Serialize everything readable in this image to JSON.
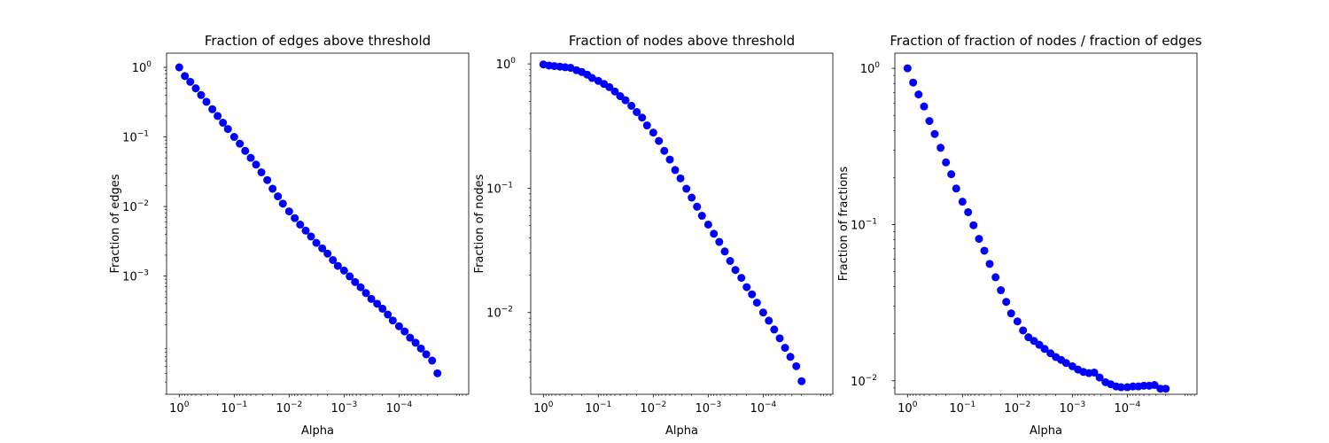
{
  "chart_data": [
    {
      "type": "scatter",
      "title": "Fraction of edges above threshold",
      "xlabel": "Alpha",
      "ylabel": "Fraction of edges",
      "xscale": "log-reversed",
      "yscale": "log",
      "xlim": [
        1.7,
        5.4e-06
      ],
      "ylim": [
        2e-05,
        1.6
      ],
      "xticks": [
        {
          "label": "10^0",
          "base": "10",
          "exp": "0",
          "value": 1
        },
        {
          "label": "10^-1",
          "base": "10",
          "exp": "−1",
          "value": 0.1
        },
        {
          "label": "10^-2",
          "base": "10",
          "exp": "−2",
          "value": 0.01
        },
        {
          "label": "10^-3",
          "base": "10",
          "exp": "−3",
          "value": 0.001
        },
        {
          "label": "10^-4",
          "base": "10",
          "exp": "−4",
          "value": 0.0001
        }
      ],
      "yticks": [
        {
          "label": "10^0",
          "base": "10",
          "exp": "0",
          "value": 1
        },
        {
          "label": "10^-1",
          "base": "10",
          "exp": "−1",
          "value": 0.1
        },
        {
          "label": "10^-2",
          "base": "10",
          "exp": "−2",
          "value": 0.01
        },
        {
          "label": "10^-3",
          "base": "10",
          "exp": "−3",
          "value": 0.001
        }
      ],
      "marker_color": "#0000ff",
      "grid": false,
      "series": [
        {
          "x": [
            1.0,
            0.79,
            0.63,
            0.5,
            0.4,
            0.32,
            0.25,
            0.2,
            0.16,
            0.13,
            0.1,
            0.079,
            0.063,
            0.05,
            0.04,
            0.032,
            0.025,
            0.02,
            0.016,
            0.013,
            0.01,
            0.0079,
            0.0063,
            0.005,
            0.004,
            0.0032,
            0.0025,
            0.002,
            0.0016,
            0.0013,
            0.001,
            0.00079,
            0.00063,
            0.0005,
            0.0004,
            0.00032,
            0.00025,
            0.0002,
            0.00016,
            0.00013,
            0.0001,
            7.9e-05,
            6.3e-05,
            5e-05,
            4e-05,
            3.2e-05,
            2.5e-05,
            2e-05
          ],
          "y": [
            1.0,
            0.75,
            0.62,
            0.5,
            0.4,
            0.32,
            0.25,
            0.2,
            0.16,
            0.13,
            0.1,
            0.08,
            0.063,
            0.05,
            0.04,
            0.031,
            0.024,
            0.018,
            0.014,
            0.011,
            0.0085,
            0.0068,
            0.0055,
            0.0045,
            0.0037,
            0.003,
            0.0025,
            0.0021,
            0.0017,
            0.0014,
            0.0012,
            0.00099,
            0.00082,
            0.00069,
            0.00057,
            0.00047,
            0.0004,
            0.00034,
            0.00028,
            0.00023,
            0.00019,
            0.00016,
            0.00013,
            0.00011,
            9.1e-05,
            7.5e-05,
            6.1e-05,
            4e-05
          ]
        }
      ]
    },
    {
      "type": "scatter",
      "title": "Fraction of nodes above threshold",
      "xlabel": "Alpha",
      "ylabel": "Fraction of nodes",
      "xscale": "log-reversed",
      "yscale": "log",
      "xlim": [
        1.7,
        5.4e-06
      ],
      "ylim": [
        0.0022,
        1.22
      ],
      "xticks": [
        {
          "label": "10^0",
          "base": "10",
          "exp": "0",
          "value": 1
        },
        {
          "label": "10^-1",
          "base": "10",
          "exp": "−1",
          "value": 0.1
        },
        {
          "label": "10^-2",
          "base": "10",
          "exp": "−2",
          "value": 0.01
        },
        {
          "label": "10^-3",
          "base": "10",
          "exp": "−3",
          "value": 0.001
        },
        {
          "label": "10^-4",
          "base": "10",
          "exp": "−4",
          "value": 0.0001
        }
      ],
      "yticks": [
        {
          "label": "10^0",
          "base": "10",
          "exp": "0",
          "value": 1
        },
        {
          "label": "10^-1",
          "base": "10",
          "exp": "−1",
          "value": 0.1
        },
        {
          "label": "10^-2",
          "base": "10",
          "exp": "−2",
          "value": 0.01
        }
      ],
      "marker_color": "#0000ff",
      "grid": false,
      "series": [
        {
          "x": [
            1.0,
            0.79,
            0.63,
            0.5,
            0.4,
            0.32,
            0.25,
            0.2,
            0.16,
            0.13,
            0.1,
            0.079,
            0.063,
            0.05,
            0.04,
            0.032,
            0.025,
            0.02,
            0.016,
            0.013,
            0.01,
            0.0079,
            0.0063,
            0.005,
            0.004,
            0.0032,
            0.0025,
            0.002,
            0.0016,
            0.0013,
            0.001,
            0.00079,
            0.00063,
            0.0005,
            0.0004,
            0.00032,
            0.00025,
            0.0002,
            0.00016,
            0.00013,
            0.0001,
            7.9e-05,
            6.3e-05,
            5e-05,
            4e-05,
            3.2e-05,
            2.5e-05,
            2e-05
          ],
          "y": [
            0.99,
            0.97,
            0.96,
            0.95,
            0.94,
            0.93,
            0.89,
            0.86,
            0.82,
            0.77,
            0.73,
            0.69,
            0.65,
            0.6,
            0.55,
            0.51,
            0.46,
            0.41,
            0.37,
            0.32,
            0.28,
            0.24,
            0.2,
            0.17,
            0.14,
            0.12,
            0.099,
            0.084,
            0.071,
            0.06,
            0.051,
            0.043,
            0.037,
            0.031,
            0.026,
            0.022,
            0.019,
            0.016,
            0.014,
            0.012,
            0.01,
            0.0086,
            0.0073,
            0.0062,
            0.0052,
            0.0044,
            0.0037,
            0.0028
          ]
        }
      ]
    },
    {
      "type": "scatter",
      "title": "Fraction of fraction of nodes / fraction of edges",
      "xlabel": "Alpha",
      "ylabel": "Fraction of fractions",
      "xscale": "log-reversed",
      "yscale": "log",
      "xlim": [
        1.7,
        5.4e-06
      ],
      "ylim": [
        0.0082,
        1.25
      ],
      "xticks": [
        {
          "label": "10^0",
          "base": "10",
          "exp": "0",
          "value": 1
        },
        {
          "label": "10^-1",
          "base": "10",
          "exp": "−1",
          "value": 0.1
        },
        {
          "label": "10^-2",
          "base": "10",
          "exp": "−2",
          "value": 0.01
        },
        {
          "label": "10^-3",
          "base": "10",
          "exp": "−3",
          "value": 0.001
        },
        {
          "label": "10^-4",
          "base": "10",
          "exp": "−4",
          "value": 0.0001
        }
      ],
      "yticks": [
        {
          "label": "10^0",
          "base": "10",
          "exp": "0",
          "value": 1
        },
        {
          "label": "10^-1",
          "base": "10",
          "exp": "−1",
          "value": 0.1
        },
        {
          "label": "10^-2",
          "base": "10",
          "exp": "−2",
          "value": 0.01
        }
      ],
      "marker_color": "#0000ff",
      "grid": false,
      "series": [
        {
          "x": [
            1.0,
            0.79,
            0.63,
            0.5,
            0.4,
            0.32,
            0.25,
            0.2,
            0.16,
            0.13,
            0.1,
            0.079,
            0.063,
            0.05,
            0.04,
            0.032,
            0.025,
            0.02,
            0.016,
            0.013,
            0.01,
            0.0079,
            0.0063,
            0.005,
            0.004,
            0.0032,
            0.0025,
            0.002,
            0.0016,
            0.0013,
            0.001,
            0.00079,
            0.00063,
            0.0005,
            0.0004,
            0.00032,
            0.00025,
            0.0002,
            0.00016,
            0.00013,
            0.0001,
            7.9e-05,
            6.3e-05,
            5e-05,
            4e-05,
            3.2e-05,
            2.5e-05,
            2e-05
          ],
          "y": [
            1.0,
            0.81,
            0.68,
            0.57,
            0.46,
            0.38,
            0.31,
            0.25,
            0.21,
            0.17,
            0.14,
            0.12,
            0.099,
            0.081,
            0.068,
            0.056,
            0.046,
            0.038,
            0.032,
            0.027,
            0.024,
            0.021,
            0.019,
            0.018,
            0.017,
            0.016,
            0.015,
            0.0142,
            0.0136,
            0.013,
            0.0124,
            0.0118,
            0.0114,
            0.0112,
            0.0113,
            0.0105,
            0.0098,
            0.0095,
            0.0092,
            0.0091,
            0.0091,
            0.0092,
            0.0092,
            0.0093,
            0.0093,
            0.0094,
            0.0089,
            0.0089
          ]
        }
      ]
    }
  ]
}
